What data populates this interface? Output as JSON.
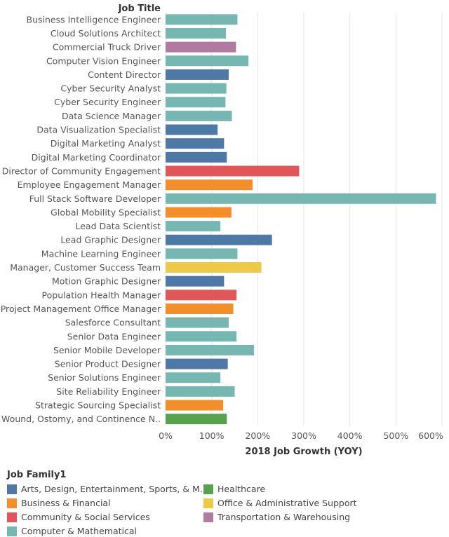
{
  "chart_data": {
    "type": "bar",
    "orientation": "horizontal",
    "row_header": "Job Title",
    "xlabel": "2018 Job Growth (YOY)",
    "xlim": [
      0,
      600
    ],
    "xticks": [
      "0%",
      "100%",
      "200%",
      "300%",
      "400%",
      "500%",
      "600%"
    ],
    "xtick_values": [
      0,
      100,
      200,
      300,
      400,
      500,
      600
    ],
    "grid": true,
    "legend_title": "Job Family1",
    "legend_position": "bottom",
    "families": [
      {
        "name": "Arts, Design, Entertainment, Sports, & M..",
        "color": "#4e79a7"
      },
      {
        "name": "Healthcare",
        "color": "#59a14f"
      },
      {
        "name": "Business & Financial",
        "color": "#f28e2b"
      },
      {
        "name": "Office & Administrative Support",
        "color": "#edc948"
      },
      {
        "name": "Community & Social Services",
        "color": "#e15759"
      },
      {
        "name": "Transportation & Warehousing",
        "color": "#b07aa1"
      },
      {
        "name": "Computer & Mathematical",
        "color": "#76b7b2"
      }
    ],
    "bars": [
      {
        "label": "Business Intelligence Engineer",
        "value": 156,
        "family": 6
      },
      {
        "label": "Cloud Solutions Architect",
        "value": 131,
        "family": 6
      },
      {
        "label": "Commercial Truck Driver",
        "value": 153,
        "family": 5
      },
      {
        "label": "Computer Vision Engineer",
        "value": 180,
        "family": 6
      },
      {
        "label": "Content Director",
        "value": 137,
        "family": 0
      },
      {
        "label": "Cyber Security Analyst",
        "value": 132,
        "family": 6
      },
      {
        "label": "Cyber Security Engineer",
        "value": 130,
        "family": 6
      },
      {
        "label": "Data Science Manager",
        "value": 144,
        "family": 6
      },
      {
        "label": "Data Visualization Specialist",
        "value": 113,
        "family": 0
      },
      {
        "label": "Digital Marketing Analyst",
        "value": 127,
        "family": 0
      },
      {
        "label": "Digital Marketing Coordinator",
        "value": 133,
        "family": 0
      },
      {
        "label": "Director of Community Engagement",
        "value": 290,
        "family": 4
      },
      {
        "label": "Employee Engagement Manager",
        "value": 189,
        "family": 2
      },
      {
        "label": "Full Stack Software Developer",
        "value": 587,
        "family": 6
      },
      {
        "label": "Global Mobility Specialist",
        "value": 143,
        "family": 2
      },
      {
        "label": "Lead Data Scientist",
        "value": 119,
        "family": 6
      },
      {
        "label": "Lead Graphic Designer",
        "value": 231,
        "family": 0
      },
      {
        "label": "Machine Learning Engineer",
        "value": 156,
        "family": 6
      },
      {
        "label": "Manager, Customer Success Team",
        "value": 208,
        "family": 3
      },
      {
        "label": "Motion Graphic Designer",
        "value": 127,
        "family": 0
      },
      {
        "label": "Population Health Manager",
        "value": 154,
        "family": 4
      },
      {
        "label": "Project Management Office Manager",
        "value": 147,
        "family": 2
      },
      {
        "label": "Salesforce Consultant",
        "value": 137,
        "family": 6
      },
      {
        "label": "Senior Data Engineer",
        "value": 154,
        "family": 6
      },
      {
        "label": "Senior Mobile Developer",
        "value": 192,
        "family": 6
      },
      {
        "label": "Senior Product Designer",
        "value": 135,
        "family": 0
      },
      {
        "label": "Senior Solutions Engineer",
        "value": 119,
        "family": 6
      },
      {
        "label": "Site Reliability Engineer",
        "value": 150,
        "family": 6
      },
      {
        "label": "Strategic Sourcing Specialist",
        "value": 125,
        "family": 2
      },
      {
        "label": "Wound, Ostomy, and Continence N..",
        "value": 133,
        "family": 1
      }
    ]
  }
}
